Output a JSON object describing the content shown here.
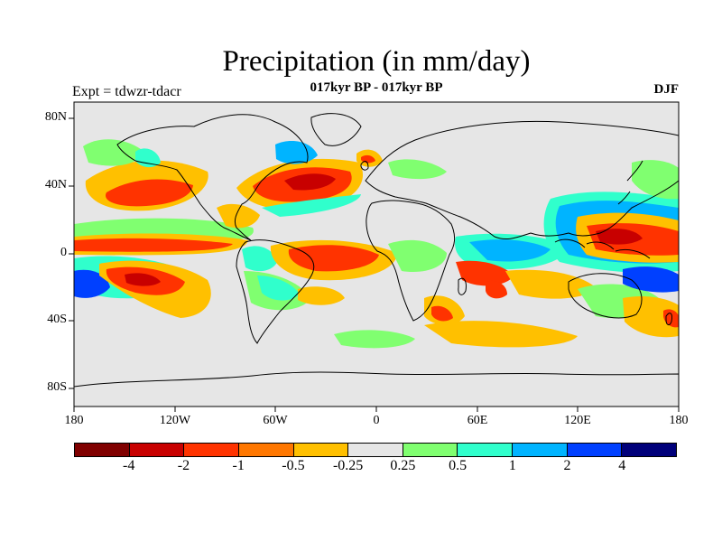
{
  "header": {
    "title": "Precipitation (in mm/day)",
    "subtitle": "017kyr BP - 017kyr BP",
    "left_label": "Expt = tdwzr-tdacr",
    "right_label": "DJF"
  },
  "map": {
    "background_color": "#e6e6e6",
    "lat_labels": [
      "80N",
      "40N",
      "0",
      "40S",
      "80S"
    ],
    "lon_labels": [
      "180",
      "120W",
      "60W",
      "0",
      "60E",
      "120E",
      "180"
    ]
  },
  "colorbar": {
    "colors": [
      "#800000",
      "#c80000",
      "#ff3300",
      "#ff7700",
      "#ffc000",
      "#e6e6e6",
      "#80ff70",
      "#30ffcc",
      "#00b4ff",
      "#0040ff",
      "#00007a"
    ],
    "labels": [
      "-4",
      "-2",
      "-1",
      "-0.5",
      "-0.25",
      "0.25",
      "0.5",
      "1",
      "2",
      "4"
    ]
  }
}
